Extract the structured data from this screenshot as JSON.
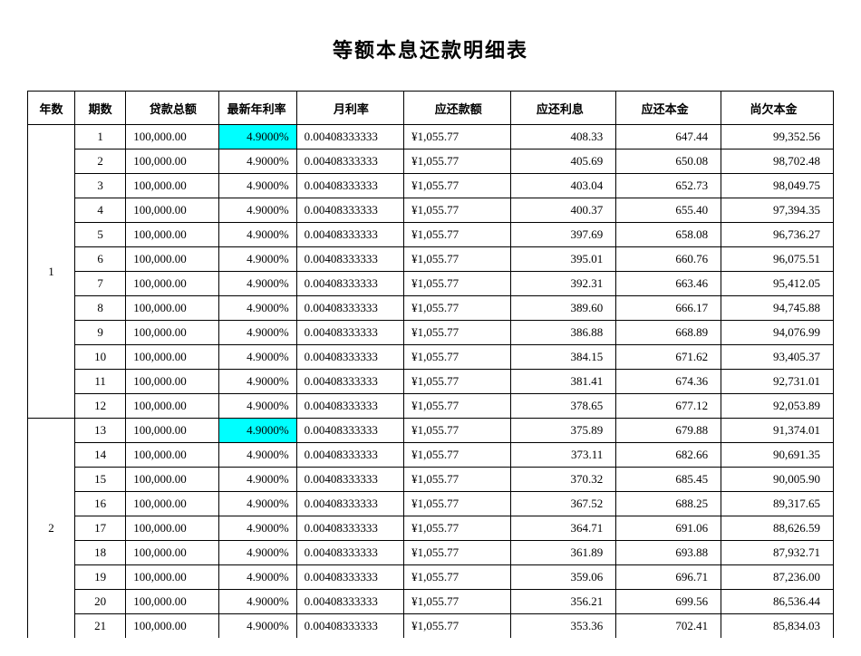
{
  "title": "等额本息还款明细表",
  "columns": [
    "年数",
    "期数",
    "贷款总额",
    "最新年利率",
    "月利率",
    "应还款额",
    "应还利息",
    "应还本金",
    "尚欠本金"
  ],
  "highlight_color": "#00ffff",
  "rows": [
    {
      "year": "1",
      "period": "1",
      "loan": "100,000.00",
      "rate": "4.9000%",
      "mrate": "0.00408333333",
      "pay": "¥1,055.77",
      "int": "408.33",
      "prin": "647.44",
      "bal": "99,352.56",
      "rate_hl": true,
      "year_start": true,
      "year_span": 12
    },
    {
      "year": "1",
      "period": "2",
      "loan": "100,000.00",
      "rate": "4.9000%",
      "mrate": "0.00408333333",
      "pay": "¥1,055.77",
      "int": "405.69",
      "prin": "650.08",
      "bal": "98,702.48"
    },
    {
      "year": "1",
      "period": "3",
      "loan": "100,000.00",
      "rate": "4.9000%",
      "mrate": "0.00408333333",
      "pay": "¥1,055.77",
      "int": "403.04",
      "prin": "652.73",
      "bal": "98,049.75"
    },
    {
      "year": "1",
      "period": "4",
      "loan": "100,000.00",
      "rate": "4.9000%",
      "mrate": "0.00408333333",
      "pay": "¥1,055.77",
      "int": "400.37",
      "prin": "655.40",
      "bal": "97,394.35"
    },
    {
      "year": "1",
      "period": "5",
      "loan": "100,000.00",
      "rate": "4.9000%",
      "mrate": "0.00408333333",
      "pay": "¥1,055.77",
      "int": "397.69",
      "prin": "658.08",
      "bal": "96,736.27"
    },
    {
      "year": "1",
      "period": "6",
      "loan": "100,000.00",
      "rate": "4.9000%",
      "mrate": "0.00408333333",
      "pay": "¥1,055.77",
      "int": "395.01",
      "prin": "660.76",
      "bal": "96,075.51"
    },
    {
      "year": "1",
      "period": "7",
      "loan": "100,000.00",
      "rate": "4.9000%",
      "mrate": "0.00408333333",
      "pay": "¥1,055.77",
      "int": "392.31",
      "prin": "663.46",
      "bal": "95,412.05"
    },
    {
      "year": "1",
      "period": "8",
      "loan": "100,000.00",
      "rate": "4.9000%",
      "mrate": "0.00408333333",
      "pay": "¥1,055.77",
      "int": "389.60",
      "prin": "666.17",
      "bal": "94,745.88"
    },
    {
      "year": "1",
      "period": "9",
      "loan": "100,000.00",
      "rate": "4.9000%",
      "mrate": "0.00408333333",
      "pay": "¥1,055.77",
      "int": "386.88",
      "prin": "668.89",
      "bal": "94,076.99"
    },
    {
      "year": "1",
      "period": "10",
      "loan": "100,000.00",
      "rate": "4.9000%",
      "mrate": "0.00408333333",
      "pay": "¥1,055.77",
      "int": "384.15",
      "prin": "671.62",
      "bal": "93,405.37"
    },
    {
      "year": "1",
      "period": "11",
      "loan": "100,000.00",
      "rate": "4.9000%",
      "mrate": "0.00408333333",
      "pay": "¥1,055.77",
      "int": "381.41",
      "prin": "674.36",
      "bal": "92,731.01"
    },
    {
      "year": "1",
      "period": "12",
      "loan": "100,000.00",
      "rate": "4.9000%",
      "mrate": "0.00408333333",
      "pay": "¥1,055.77",
      "int": "378.65",
      "prin": "677.12",
      "bal": "92,053.89"
    },
    {
      "year": "2",
      "period": "13",
      "loan": "100,000.00",
      "rate": "4.9000%",
      "mrate": "0.00408333333",
      "pay": "¥1,055.77",
      "int": "375.89",
      "prin": "679.88",
      "bal": "91,374.01",
      "rate_hl": true,
      "year_start": true,
      "year_span": 9
    },
    {
      "year": "2",
      "period": "14",
      "loan": "100,000.00",
      "rate": "4.9000%",
      "mrate": "0.00408333333",
      "pay": "¥1,055.77",
      "int": "373.11",
      "prin": "682.66",
      "bal": "90,691.35"
    },
    {
      "year": "2",
      "period": "15",
      "loan": "100,000.00",
      "rate": "4.9000%",
      "mrate": "0.00408333333",
      "pay": "¥1,055.77",
      "int": "370.32",
      "prin": "685.45",
      "bal": "90,005.90"
    },
    {
      "year": "2",
      "period": "16",
      "loan": "100,000.00",
      "rate": "4.9000%",
      "mrate": "0.00408333333",
      "pay": "¥1,055.77",
      "int": "367.52",
      "prin": "688.25",
      "bal": "89,317.65"
    },
    {
      "year": "2",
      "period": "17",
      "loan": "100,000.00",
      "rate": "4.9000%",
      "mrate": "0.00408333333",
      "pay": "¥1,055.77",
      "int": "364.71",
      "prin": "691.06",
      "bal": "88,626.59"
    },
    {
      "year": "2",
      "period": "18",
      "loan": "100,000.00",
      "rate": "4.9000%",
      "mrate": "0.00408333333",
      "pay": "¥1,055.77",
      "int": "361.89",
      "prin": "693.88",
      "bal": "87,932.71"
    },
    {
      "year": "2",
      "period": "19",
      "loan": "100,000.00",
      "rate": "4.9000%",
      "mrate": "0.00408333333",
      "pay": "¥1,055.77",
      "int": "359.06",
      "prin": "696.71",
      "bal": "87,236.00"
    },
    {
      "year": "2",
      "period": "20",
      "loan": "100,000.00",
      "rate": "4.9000%",
      "mrate": "0.00408333333",
      "pay": "¥1,055.77",
      "int": "356.21",
      "prin": "699.56",
      "bal": "86,536.44"
    },
    {
      "year": "2",
      "period": "21",
      "loan": "100,000.00",
      "rate": "4.9000%",
      "mrate": "0.00408333333",
      "pay": "¥1,055.77",
      "int": "353.36",
      "prin": "702.41",
      "bal": "85,834.03",
      "open_bottom": true
    }
  ]
}
